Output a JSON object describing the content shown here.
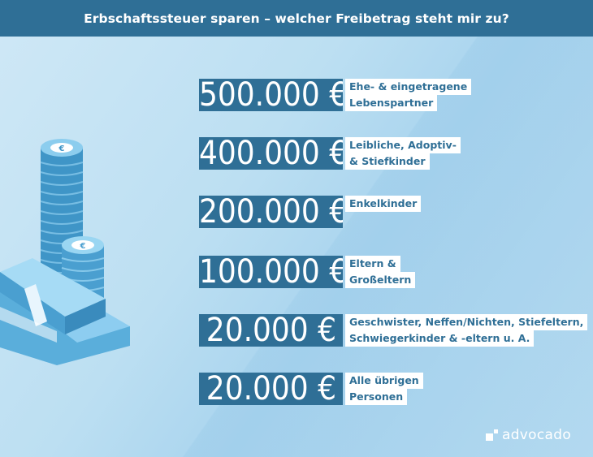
{
  "header": {
    "title": "Erbschaftssteuer sparen – welcher Freibetrag steht mir zu?"
  },
  "rows": [
    {
      "amount": "500.000 €",
      "lines": [
        "Ehe- & eingetragene",
        "Lebenspartner"
      ]
    },
    {
      "amount": "400.000 €",
      "lines": [
        "Leibliche, Adoptiv-",
        "& Stiefkinder"
      ]
    },
    {
      "amount": "200.000 €",
      "lines": [
        "Enkelkinder"
      ]
    },
    {
      "amount": "100.000 €",
      "lines": [
        "Eltern &",
        "Großeltern"
      ]
    },
    {
      "amount": "20.000 €",
      "lines": [
        "Geschwister, Neffen/Nichten, Stiefeltern,",
        "Schwiegerkinder & -eltern u. A."
      ]
    },
    {
      "amount": "20.000 €",
      "lines": [
        "Alle übrigen",
        "Personen"
      ]
    }
  ],
  "illustration": {
    "icon": "euro-coins-and-banknotes-icon"
  },
  "logo": {
    "text": "advocado",
    "icon": "advocado-logo-icon"
  },
  "colors": {
    "header_bg": "#2f6f96",
    "amount_bg": "#2f6f96",
    "label_text": "#2f6f96",
    "background": "#bcdff2"
  }
}
